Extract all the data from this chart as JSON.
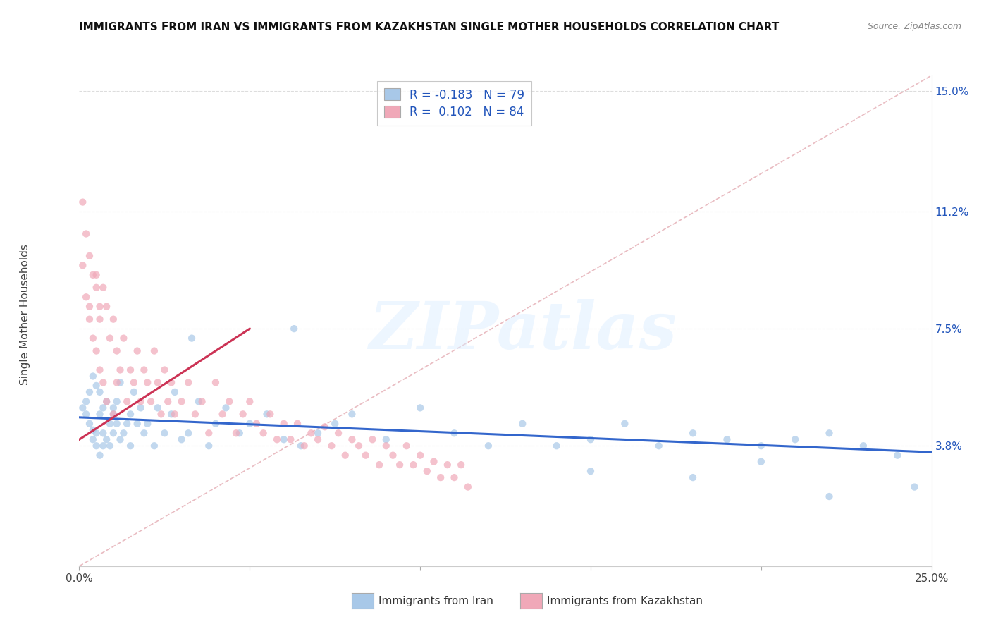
{
  "title": "IMMIGRANTS FROM IRAN VS IMMIGRANTS FROM KAZAKHSTAN SINGLE MOTHER HOUSEHOLDS CORRELATION CHART",
  "source": "Source: ZipAtlas.com",
  "ylabel": "Single Mother Households",
  "legend_label1": "Immigrants from Iran",
  "legend_label2": "Immigrants from Kazakhstan",
  "r1": -0.183,
  "n1": 79,
  "r2": 0.102,
  "n2": 84,
  "xlim": [
    0.0,
    0.25
  ],
  "ylim": [
    0.0,
    0.155
  ],
  "ytick_vals": [
    0.038,
    0.075,
    0.112,
    0.15
  ],
  "ytick_labels": [
    "3.8%",
    "7.5%",
    "11.2%",
    "15.0%"
  ],
  "color_iran": "#a8c8e8",
  "color_iran_line": "#3366cc",
  "color_kazakhstan": "#f0a8b8",
  "color_kazakhstan_line": "#cc3355",
  "color_diagonal": "#e0a0a8",
  "background": "#ffffff",
  "watermark_text": "ZIPatlas",
  "iran_x": [
    0.001,
    0.002,
    0.002,
    0.003,
    0.003,
    0.004,
    0.004,
    0.004,
    0.005,
    0.005,
    0.005,
    0.006,
    0.006,
    0.006,
    0.007,
    0.007,
    0.007,
    0.008,
    0.008,
    0.009,
    0.009,
    0.01,
    0.01,
    0.01,
    0.011,
    0.011,
    0.012,
    0.012,
    0.013,
    0.014,
    0.015,
    0.015,
    0.016,
    0.017,
    0.018,
    0.019,
    0.02,
    0.022,
    0.023,
    0.025,
    0.027,
    0.028,
    0.03,
    0.032,
    0.033,
    0.035,
    0.038,
    0.04,
    0.043,
    0.047,
    0.05,
    0.055,
    0.06,
    0.063,
    0.065,
    0.07,
    0.075,
    0.08,
    0.09,
    0.1,
    0.11,
    0.12,
    0.13,
    0.14,
    0.15,
    0.16,
    0.17,
    0.18,
    0.19,
    0.2,
    0.21,
    0.22,
    0.23,
    0.24,
    0.245,
    0.2,
    0.18,
    0.22,
    0.15
  ],
  "iran_y": [
    0.05,
    0.048,
    0.052,
    0.045,
    0.055,
    0.043,
    0.06,
    0.04,
    0.042,
    0.057,
    0.038,
    0.048,
    0.055,
    0.035,
    0.05,
    0.042,
    0.038,
    0.052,
    0.04,
    0.045,
    0.038,
    0.05,
    0.042,
    0.048,
    0.045,
    0.052,
    0.04,
    0.058,
    0.042,
    0.045,
    0.048,
    0.038,
    0.055,
    0.045,
    0.05,
    0.042,
    0.045,
    0.038,
    0.05,
    0.042,
    0.048,
    0.055,
    0.04,
    0.042,
    0.072,
    0.052,
    0.038,
    0.045,
    0.05,
    0.042,
    0.045,
    0.048,
    0.04,
    0.075,
    0.038,
    0.042,
    0.045,
    0.048,
    0.04,
    0.05,
    0.042,
    0.038,
    0.045,
    0.038,
    0.04,
    0.045,
    0.038,
    0.042,
    0.04,
    0.038,
    0.04,
    0.042,
    0.038,
    0.035,
    0.025,
    0.033,
    0.028,
    0.022,
    0.03
  ],
  "kazakhstan_x": [
    0.001,
    0.001,
    0.002,
    0.002,
    0.003,
    0.003,
    0.003,
    0.004,
    0.004,
    0.005,
    0.005,
    0.005,
    0.006,
    0.006,
    0.006,
    0.007,
    0.007,
    0.008,
    0.008,
    0.009,
    0.01,
    0.01,
    0.011,
    0.011,
    0.012,
    0.013,
    0.014,
    0.015,
    0.016,
    0.017,
    0.018,
    0.019,
    0.02,
    0.021,
    0.022,
    0.023,
    0.024,
    0.025,
    0.026,
    0.027,
    0.028,
    0.03,
    0.032,
    0.034,
    0.036,
    0.038,
    0.04,
    0.042,
    0.044,
    0.046,
    0.048,
    0.05,
    0.052,
    0.054,
    0.056,
    0.058,
    0.06,
    0.062,
    0.064,
    0.066,
    0.068,
    0.07,
    0.072,
    0.074,
    0.076,
    0.078,
    0.08,
    0.082,
    0.084,
    0.086,
    0.088,
    0.09,
    0.092,
    0.094,
    0.096,
    0.098,
    0.1,
    0.102,
    0.104,
    0.106,
    0.108,
    0.11,
    0.112,
    0.114
  ],
  "kazakhstan_y": [
    0.095,
    0.115,
    0.085,
    0.105,
    0.078,
    0.098,
    0.082,
    0.092,
    0.072,
    0.088,
    0.068,
    0.092,
    0.082,
    0.062,
    0.078,
    0.088,
    0.058,
    0.082,
    0.052,
    0.072,
    0.078,
    0.048,
    0.058,
    0.068,
    0.062,
    0.072,
    0.052,
    0.062,
    0.058,
    0.068,
    0.052,
    0.062,
    0.058,
    0.052,
    0.068,
    0.058,
    0.048,
    0.062,
    0.052,
    0.058,
    0.048,
    0.052,
    0.058,
    0.048,
    0.052,
    0.042,
    0.058,
    0.048,
    0.052,
    0.042,
    0.048,
    0.052,
    0.045,
    0.042,
    0.048,
    0.04,
    0.045,
    0.04,
    0.045,
    0.038,
    0.042,
    0.04,
    0.044,
    0.038,
    0.042,
    0.035,
    0.04,
    0.038,
    0.035,
    0.04,
    0.032,
    0.038,
    0.035,
    0.032,
    0.038,
    0.032,
    0.035,
    0.03,
    0.033,
    0.028,
    0.032,
    0.028,
    0.032,
    0.025
  ],
  "iran_line_x": [
    0.0,
    0.25
  ],
  "iran_line_y": [
    0.047,
    0.036
  ],
  "kaz_line_x": [
    0.0,
    0.05
  ],
  "kaz_line_y": [
    0.04,
    0.075
  ]
}
